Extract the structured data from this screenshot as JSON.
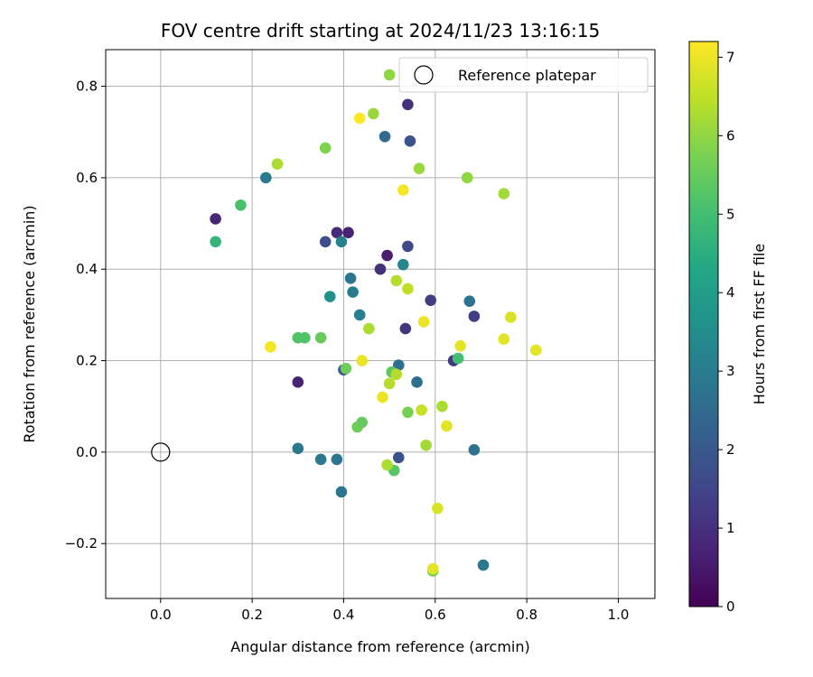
{
  "chart_data": {
    "type": "scatter",
    "title": "FOV centre drift starting at 2024/11/23 13:16:15",
    "xlabel": "Angular distance from reference (arcmin)",
    "ylabel": "Rotation from reference (arcmin)",
    "xlim": [
      -0.12,
      1.08
    ],
    "ylim": [
      -0.32,
      0.88
    ],
    "xticks": [
      0.0,
      0.2,
      0.4,
      0.6,
      0.8,
      1.0
    ],
    "xtick_labels": [
      "0.0",
      "0.2",
      "0.4",
      "0.6",
      "0.8",
      "1.0"
    ],
    "yticks": [
      -0.2,
      0.0,
      0.2,
      0.4,
      0.6,
      0.8
    ],
    "ytick_labels": [
      "−0.2",
      "0.0",
      "0.2",
      "0.4",
      "0.6",
      "0.8"
    ],
    "grid": true,
    "legend": {
      "position": "top-right",
      "entries": [
        "Reference platepar"
      ]
    },
    "reference_point": {
      "label": "Reference platepar",
      "x": 0.0,
      "y": 0.0,
      "marker": "open-circle"
    },
    "colorbar": {
      "label": "Hours from first FF file",
      "range": [
        0,
        7.2
      ],
      "ticks": [
        0,
        1,
        2,
        3,
        4,
        5,
        6,
        7
      ],
      "tick_labels": [
        "0",
        "1",
        "2",
        "3",
        "4",
        "5",
        "6",
        "7"
      ],
      "colormap": "viridis"
    },
    "points": [
      {
        "x": 0.12,
        "y": 0.51,
        "c": 0.8
      },
      {
        "x": 0.3,
        "y": 0.153,
        "c": 0.7
      },
      {
        "x": 0.385,
        "y": 0.48,
        "c": 0.9
      },
      {
        "x": 0.41,
        "y": 0.48,
        "c": 0.7
      },
      {
        "x": 0.495,
        "y": 0.43,
        "c": 0.6
      },
      {
        "x": 0.48,
        "y": 0.4,
        "c": 1.0
      },
      {
        "x": 0.54,
        "y": 0.76,
        "c": 1.0
      },
      {
        "x": 0.535,
        "y": 0.27,
        "c": 1.1
      },
      {
        "x": 0.64,
        "y": 0.2,
        "c": 1.2
      },
      {
        "x": 0.685,
        "y": 0.297,
        "c": 1.3
      },
      {
        "x": 0.59,
        "y": 0.332,
        "c": 1.3
      },
      {
        "x": 0.36,
        "y": 0.46,
        "c": 1.7
      },
      {
        "x": 0.54,
        "y": 0.45,
        "c": 1.6
      },
      {
        "x": 0.545,
        "y": 0.68,
        "c": 1.8
      },
      {
        "x": 0.4,
        "y": 0.18,
        "c": 1.9
      },
      {
        "x": 0.52,
        "y": -0.012,
        "c": 1.8
      },
      {
        "x": 0.49,
        "y": 0.69,
        "c": 2.5
      },
      {
        "x": 0.52,
        "y": 0.19,
        "c": 2.6
      },
      {
        "x": 0.56,
        "y": 0.153,
        "c": 2.6
      },
      {
        "x": 0.675,
        "y": 0.33,
        "c": 2.7
      },
      {
        "x": 0.23,
        "y": 0.6,
        "c": 3.0
      },
      {
        "x": 0.395,
        "y": 0.46,
        "c": 3.2
      },
      {
        "x": 0.415,
        "y": 0.38,
        "c": 2.8
      },
      {
        "x": 0.42,
        "y": 0.35,
        "c": 3.0
      },
      {
        "x": 0.435,
        "y": 0.3,
        "c": 3.1
      },
      {
        "x": 0.53,
        "y": 0.41,
        "c": 3.3
      },
      {
        "x": 0.3,
        "y": 0.008,
        "c": 2.9
      },
      {
        "x": 0.35,
        "y": -0.016,
        "c": 2.9
      },
      {
        "x": 0.385,
        "y": -0.016,
        "c": 2.8
      },
      {
        "x": 0.395,
        "y": -0.087,
        "c": 2.8
      },
      {
        "x": 0.685,
        "y": 0.005,
        "c": 2.7
      },
      {
        "x": 0.705,
        "y": -0.247,
        "c": 2.9
      },
      {
        "x": 0.37,
        "y": 0.34,
        "c": 3.6
      },
      {
        "x": 0.12,
        "y": 0.46,
        "c": 4.7
      },
      {
        "x": 0.175,
        "y": 0.54,
        "c": 5.1
      },
      {
        "x": 0.3,
        "y": 0.25,
        "c": 5.2
      },
      {
        "x": 0.315,
        "y": 0.25,
        "c": 5.2
      },
      {
        "x": 0.35,
        "y": 0.25,
        "c": 5.5
      },
      {
        "x": 0.405,
        "y": 0.183,
        "c": 5.6
      },
      {
        "x": 0.43,
        "y": 0.055,
        "c": 5.6
      },
      {
        "x": 0.44,
        "y": 0.065,
        "c": 5.5
      },
      {
        "x": 0.505,
        "y": 0.175,
        "c": 5.4
      },
      {
        "x": 0.51,
        "y": -0.04,
        "c": 5.3
      },
      {
        "x": 0.54,
        "y": 0.087,
        "c": 5.7
      },
      {
        "x": 0.65,
        "y": 0.205,
        "c": 5.0
      },
      {
        "x": 0.595,
        "y": -0.26,
        "c": 5.7
      },
      {
        "x": 0.255,
        "y": 0.63,
        "c": 6.3
      },
      {
        "x": 0.36,
        "y": 0.665,
        "c": 5.8
      },
      {
        "x": 0.465,
        "y": 0.74,
        "c": 6.1
      },
      {
        "x": 0.5,
        "y": 0.825,
        "c": 6.0
      },
      {
        "x": 0.565,
        "y": 0.62,
        "c": 6.1
      },
      {
        "x": 0.67,
        "y": 0.6,
        "c": 6.0
      },
      {
        "x": 0.75,
        "y": 0.565,
        "c": 6.2
      },
      {
        "x": 0.455,
        "y": 0.27,
        "c": 6.3
      },
      {
        "x": 0.515,
        "y": 0.375,
        "c": 6.4
      },
      {
        "x": 0.54,
        "y": 0.357,
        "c": 6.5
      },
      {
        "x": 0.5,
        "y": 0.15,
        "c": 6.4
      },
      {
        "x": 0.515,
        "y": 0.17,
        "c": 6.4
      },
      {
        "x": 0.57,
        "y": 0.092,
        "c": 6.6
      },
      {
        "x": 0.615,
        "y": 0.1,
        "c": 6.3
      },
      {
        "x": 0.58,
        "y": 0.015,
        "c": 6.2
      },
      {
        "x": 0.495,
        "y": -0.028,
        "c": 6.3
      },
      {
        "x": 0.765,
        "y": 0.295,
        "c": 6.8
      },
      {
        "x": 0.75,
        "y": 0.247,
        "c": 6.9
      },
      {
        "x": 0.655,
        "y": 0.232,
        "c": 6.9
      },
      {
        "x": 0.82,
        "y": 0.223,
        "c": 6.9
      },
      {
        "x": 0.575,
        "y": 0.285,
        "c": 7.0
      },
      {
        "x": 0.24,
        "y": 0.23,
        "c": 7.1
      },
      {
        "x": 0.435,
        "y": 0.73,
        "c": 7.2
      },
      {
        "x": 0.53,
        "y": 0.573,
        "c": 7.1
      },
      {
        "x": 0.44,
        "y": 0.2,
        "c": 7.0
      },
      {
        "x": 0.485,
        "y": 0.12,
        "c": 7.0
      },
      {
        "x": 0.625,
        "y": 0.057,
        "c": 6.9
      },
      {
        "x": 0.605,
        "y": -0.123,
        "c": 6.8
      },
      {
        "x": 0.595,
        "y": -0.255,
        "c": 6.9
      }
    ]
  }
}
